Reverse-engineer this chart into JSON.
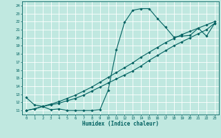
{
  "xlabel": "Humidex (Indice chaleur)",
  "bg_color": "#c0e8e0",
  "line_color": "#006060",
  "xlim": [
    -0.5,
    23.5
  ],
  "ylim": [
    10.5,
    24.5
  ],
  "xticks": [
    0,
    1,
    2,
    3,
    4,
    5,
    6,
    7,
    8,
    9,
    10,
    11,
    12,
    13,
    14,
    15,
    16,
    17,
    18,
    19,
    20,
    21,
    22,
    23
  ],
  "yticks": [
    11,
    12,
    13,
    14,
    15,
    16,
    17,
    18,
    19,
    20,
    21,
    22,
    23,
    24
  ],
  "curve1_x": [
    0,
    1,
    2,
    3,
    4,
    5,
    6,
    7,
    8,
    9,
    10,
    11,
    12,
    13,
    14,
    15,
    16,
    17,
    18,
    19,
    20,
    21,
    22,
    23
  ],
  "curve1_y": [
    12.6,
    11.7,
    11.5,
    11.1,
    11.2,
    11.0,
    11.0,
    11.0,
    11.0,
    11.1,
    13.5,
    18.5,
    21.9,
    23.4,
    23.6,
    23.6,
    22.4,
    21.3,
    20.1,
    20.2,
    20.3,
    21.2,
    20.2,
    21.8
  ],
  "curve2_x": [
    0,
    1,
    2,
    3,
    4,
    5,
    6,
    7,
    8,
    9,
    10,
    11,
    12,
    13,
    14,
    15,
    16,
    17,
    18,
    19,
    20,
    21,
    22,
    23
  ],
  "curve2_y": [
    11.0,
    11.2,
    11.5,
    11.7,
    11.9,
    12.2,
    12.5,
    12.9,
    13.4,
    13.9,
    14.4,
    14.9,
    15.4,
    15.9,
    16.5,
    17.2,
    17.8,
    18.4,
    19.0,
    19.5,
    20.0,
    20.5,
    21.0,
    21.8
  ],
  "curve3_x": [
    0,
    1,
    2,
    3,
    4,
    5,
    6,
    7,
    8,
    9,
    10,
    11,
    12,
    13,
    14,
    15,
    16,
    17,
    18,
    19,
    20,
    21,
    22,
    23
  ],
  "curve3_y": [
    11.0,
    11.2,
    11.5,
    11.8,
    12.1,
    12.5,
    12.9,
    13.4,
    13.9,
    14.5,
    15.1,
    15.7,
    16.3,
    16.9,
    17.6,
    18.2,
    18.8,
    19.4,
    19.9,
    20.4,
    20.8,
    21.2,
    21.6,
    22.0
  ]
}
